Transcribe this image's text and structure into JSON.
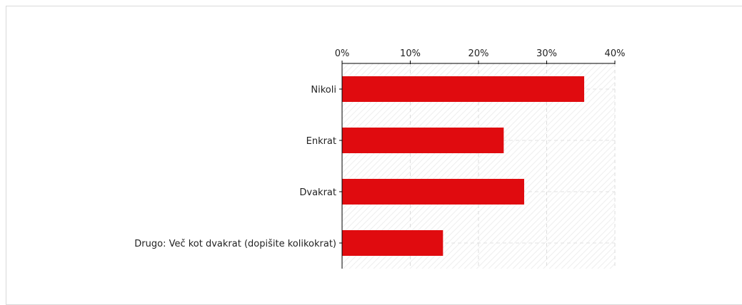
{
  "chart_data": {
    "type": "bar",
    "orientation": "horizontal",
    "categories": [
      "Nikoli",
      "Enkrat",
      "Dvakrat",
      "Drugo: Več kot dvakrat (dopišite kolikokrat)"
    ],
    "values": [
      35.5,
      23.7,
      26.7,
      14.8
    ],
    "xlim": [
      0,
      40
    ],
    "x_ticks": [
      0,
      10,
      20,
      30,
      40
    ],
    "x_tick_labels": [
      "0%",
      "10%",
      "20%",
      "30%",
      "40%"
    ],
    "axis_position": "top",
    "grid": true,
    "bar_color": "#e00b0f",
    "title": "",
    "xlabel": "",
    "ylabel": ""
  }
}
